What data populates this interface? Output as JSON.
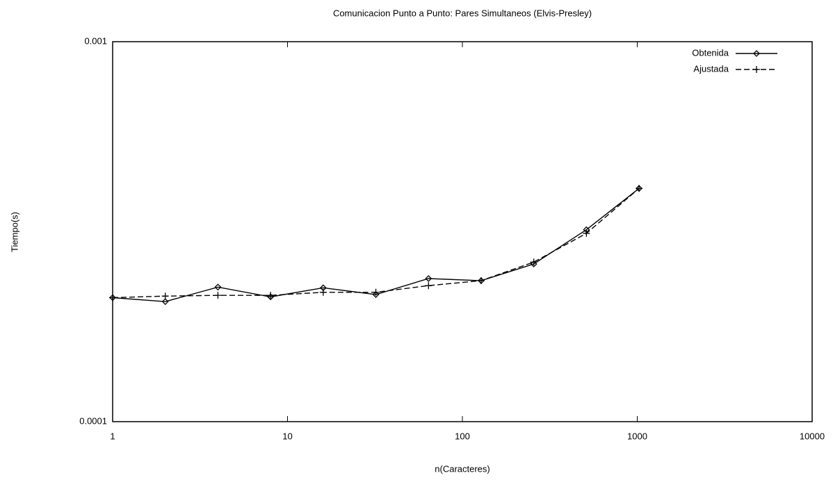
{
  "chart_data": {
    "type": "line",
    "title": "Comunicacion Punto a Punto: Pares Simultaneos (Elvis-Presley)",
    "xlabel": "n(Caracteres)",
    "ylabel": "Tiempo(s)",
    "x": [
      1,
      2,
      4,
      8,
      16,
      32,
      64,
      128,
      256,
      512,
      1024
    ],
    "series": [
      {
        "name": "Obtenida",
        "color": "#000000",
        "marker": "diamond",
        "dashed": false,
        "values": [
          0.000212,
          0.000207,
          0.000226,
          0.000213,
          0.000225,
          0.000216,
          0.000238,
          0.000235,
          0.00026,
          0.00032,
          0.000411
        ]
      },
      {
        "name": "Ajustada",
        "color": "#000000",
        "marker": "plus",
        "dashed": true,
        "values": [
          0.000212,
          0.000214,
          0.000215,
          0.000215,
          0.000219,
          0.000219,
          0.000228,
          0.000235,
          0.000263,
          0.000313,
          0.000411
        ]
      }
    ],
    "xlim": [
      1,
      10000
    ],
    "xticks": [
      1,
      10,
      100,
      1000,
      10000
    ],
    "ylim": [
      0.0001,
      0.001
    ],
    "yticks": [
      0.0001,
      0.001
    ],
    "xlog": true,
    "ylog": true,
    "grid": false,
    "legend": "top-right"
  }
}
